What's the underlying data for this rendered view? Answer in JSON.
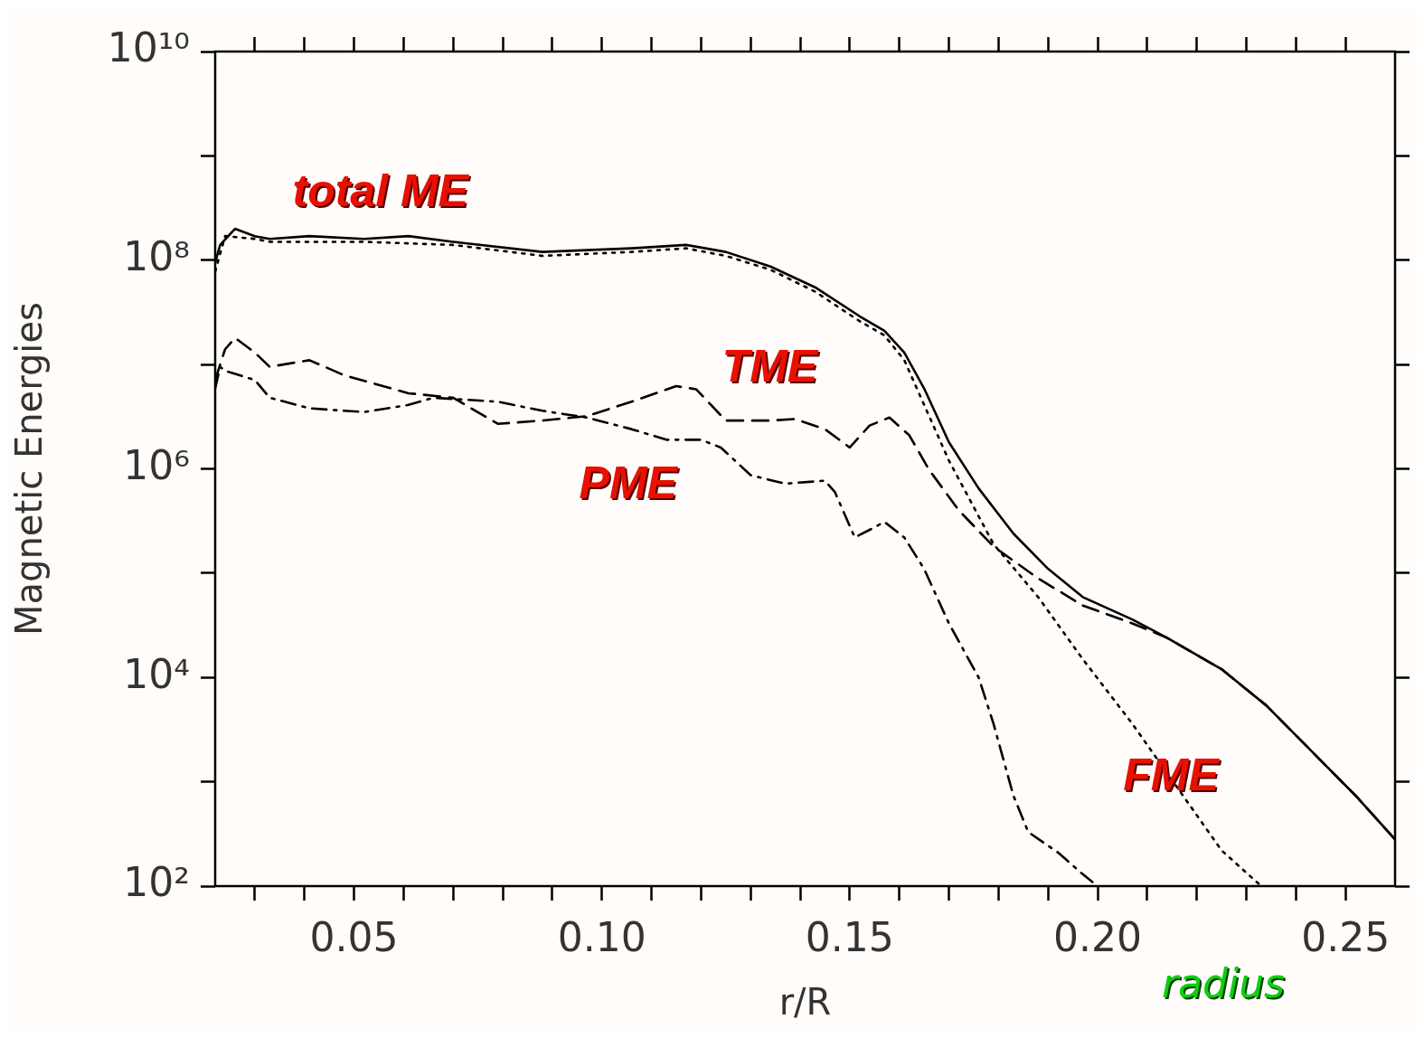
{
  "chart_data": {
    "type": "line",
    "xlabel": "r/R",
    "ylabel": "Magnetic Energies",
    "log": "y",
    "grid": false,
    "legend": false,
    "marker": "none",
    "xlim": [
      0.022,
      0.26
    ],
    "ylim": [
      100,
      10000000000
    ],
    "xticks": [
      {
        "value": 0.03,
        "label": null
      },
      {
        "value": 0.04,
        "label": null
      },
      {
        "value": 0.05,
        "label": "0.05"
      },
      {
        "value": 0.06,
        "label": null
      },
      {
        "value": 0.07,
        "label": null
      },
      {
        "value": 0.08,
        "label": null
      },
      {
        "value": 0.09,
        "label": null
      },
      {
        "value": 0.1,
        "label": "0.10"
      },
      {
        "value": 0.11,
        "label": null
      },
      {
        "value": 0.12,
        "label": null
      },
      {
        "value": 0.13,
        "label": null
      },
      {
        "value": 0.14,
        "label": null
      },
      {
        "value": 0.15,
        "label": "0.15"
      },
      {
        "value": 0.16,
        "label": null
      },
      {
        "value": 0.17,
        "label": null
      },
      {
        "value": 0.18,
        "label": null
      },
      {
        "value": 0.19,
        "label": null
      },
      {
        "value": 0.2,
        "label": "0.20"
      },
      {
        "value": 0.21,
        "label": null
      },
      {
        "value": 0.22,
        "label": null
      },
      {
        "value": 0.23,
        "label": null
      },
      {
        "value": 0.24,
        "label": null
      },
      {
        "value": 0.25,
        "label": "0.25"
      }
    ],
    "yticks": [
      {
        "value": 100,
        "label": "10²"
      },
      {
        "value": 1000,
        "label": null
      },
      {
        "value": 10000,
        "label": "10⁴"
      },
      {
        "value": 100000,
        "label": null
      },
      {
        "value": 1000000,
        "label": "10⁶"
      },
      {
        "value": 10000000,
        "label": null
      },
      {
        "value": 100000000,
        "label": "10⁸"
      },
      {
        "value": 1000000000,
        "label": null
      },
      {
        "value": 10000000000,
        "label": "10¹⁰"
      }
    ],
    "series": [
      {
        "name": "total ME",
        "color": "#000000",
        "line_style": "solid",
        "x": [
          0.022,
          0.023,
          0.026,
          0.03,
          0.033,
          0.041,
          0.052,
          0.061,
          0.07,
          0.088,
          0.106,
          0.117,
          0.125,
          0.134,
          0.143,
          0.152,
          0.157,
          0.161,
          0.165,
          0.17,
          0.176,
          0.183,
          0.19,
          0.197,
          0.207,
          0.214,
          0.225,
          0.234,
          0.243,
          0.252,
          0.26
        ],
        "values": [
          95000000,
          140000000,
          200000000,
          170000000,
          160000000,
          170000000,
          160000000,
          170000000,
          150000000,
          120000000,
          130000000,
          140000000,
          120000000,
          87000000,
          55000000,
          29000000,
          21000000,
          13000000,
          5900000,
          1800000,
          650000,
          240000,
          110000,
          59000,
          36000,
          24000,
          12000,
          5400,
          2000,
          740,
          280
        ]
      },
      {
        "name": "FME",
        "color": "#000000",
        "line_style": "dotted",
        "x": [
          0.022,
          0.024,
          0.03,
          0.033,
          0.052,
          0.07,
          0.088,
          0.106,
          0.117,
          0.125,
          0.134,
          0.143,
          0.152,
          0.157,
          0.161,
          0.17,
          0.179,
          0.188,
          0.197,
          0.207,
          0.216,
          0.225,
          0.233
        ],
        "values": [
          78000000,
          170000000,
          160000000,
          150000000,
          150000000,
          140000000,
          110000000,
          120000000,
          130000000,
          110000000,
          81000000,
          50000000,
          26000000,
          19000000,
          11000000,
          1200000,
          190000,
          59000,
          15000,
          3600,
          890,
          220,
          100
        ]
      },
      {
        "name": "TME",
        "color": "#000000",
        "line_style": "dashed",
        "x": [
          0.022,
          0.024,
          0.026,
          0.03,
          0.033,
          0.041,
          0.048,
          0.061,
          0.07,
          0.079,
          0.088,
          0.097,
          0.106,
          0.115,
          0.119,
          0.125,
          0.134,
          0.139,
          0.145,
          0.15,
          0.154,
          0.158,
          0.162,
          0.166,
          0.172,
          0.179,
          0.188,
          0.197,
          0.207,
          0.214,
          0.225,
          0.234,
          0.243,
          0.252,
          0.26
        ],
        "values": [
          7100000,
          14000000,
          18000000,
          13000000,
          9500000,
          11000000,
          7900000,
          5300000,
          4800000,
          2700000,
          2900000,
          3200000,
          4400000,
          6200000,
          5800000,
          2900000,
          2900000,
          3000000,
          2400000,
          1600000,
          2600000,
          3100000,
          2100000,
          980000,
          400000,
          180000,
          89000,
          49000,
          33000,
          24000,
          12000,
          5400,
          2000,
          740,
          280
        ]
      },
      {
        "name": "PME",
        "color": "#000000",
        "line_style": "dashdot",
        "x": [
          0.022,
          0.023,
          0.024,
          0.03,
          0.033,
          0.041,
          0.052,
          0.061,
          0.066,
          0.079,
          0.088,
          0.097,
          0.106,
          0.113,
          0.12,
          0.124,
          0.13,
          0.137,
          0.145,
          0.147,
          0.151,
          0.154,
          0.157,
          0.161,
          0.165,
          0.17,
          0.176,
          0.179,
          0.183,
          0.186,
          0.192,
          0.197,
          0.2
        ],
        "values": [
          5900000,
          9500000,
          8700000,
          7100000,
          4800000,
          3800000,
          3500000,
          4100000,
          4800000,
          4400000,
          3600000,
          3100000,
          2400000,
          1900000,
          1900000,
          1600000,
          870000,
          720000,
          770000,
          600000,
          220000,
          260000,
          310000,
          220000,
          110000,
          33000,
          10000,
          3600,
          740,
          330,
          210,
          130,
          100
        ]
      }
    ],
    "annotations": [
      "radius"
    ]
  }
}
